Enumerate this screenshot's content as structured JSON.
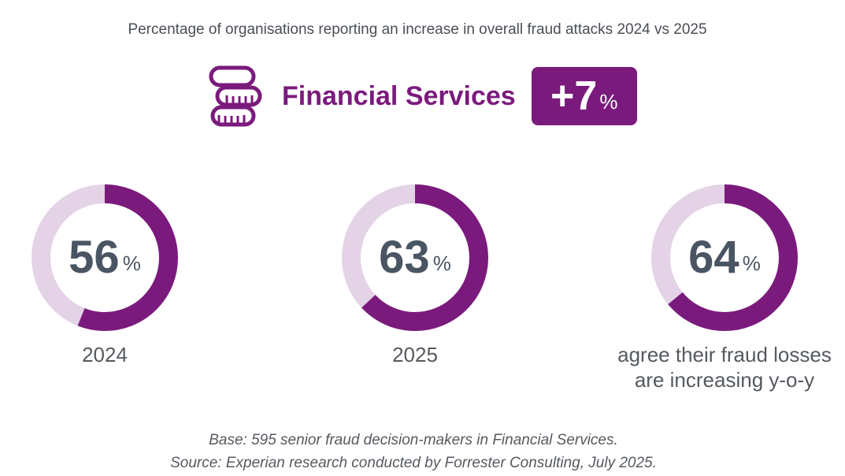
{
  "subtitle": "Percentage of organisations reporting an increase in overall fraud attacks 2024 vs 2025",
  "headline": {
    "icon": "coins-icon",
    "sector": "Financial Services",
    "change_value": "+7",
    "change_unit": "%"
  },
  "colors": {
    "accent": "#7b1a7d",
    "track": "#e4d2e6",
    "number": "#4a5563"
  },
  "chart_data": {
    "type": "pie",
    "series": [
      {
        "value": 56,
        "unit": "%",
        "label": "2024"
      },
      {
        "value": 63,
        "unit": "%",
        "label": "2025"
      },
      {
        "value": 64,
        "unit": "%",
        "label": "agree their fraud losses are increasing y-o-y"
      }
    ],
    "range": [
      0,
      100
    ]
  },
  "footnotes": {
    "base": "Base: 595 senior fraud decision-makers in Financial Services.",
    "source": "Source: Experian research conducted by Forrester Consulting, July 2025."
  }
}
